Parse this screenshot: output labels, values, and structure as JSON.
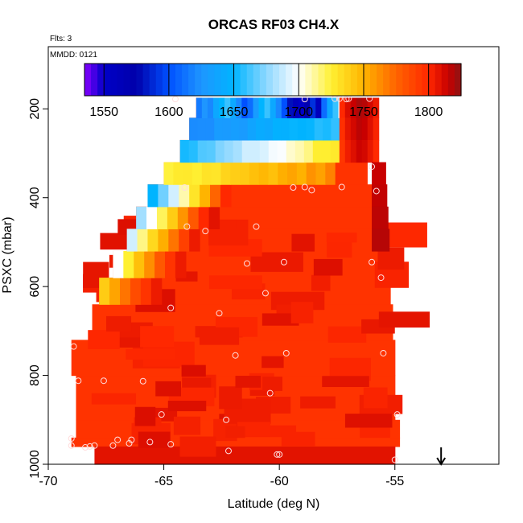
{
  "chart_data": {
    "type": "heatmap",
    "title": "ORCAS RF03 CH4.X",
    "flights_note": "Flts: 3",
    "date_note": "MMDD: 0121",
    "xlabel": "Latitude (deg N)",
    "ylabel": "PSXC (mbar)",
    "xlim": [
      -70,
      -50.5
    ],
    "ylim": [
      1000,
      60
    ],
    "x_ticks": [
      -70,
      -65,
      -60,
      -55
    ],
    "y_ticks": [
      200,
      400,
      600,
      800,
      1000
    ],
    "colorbar": {
      "min": 1535,
      "max": 1825,
      "ticks": [
        1550,
        1600,
        1650,
        1700,
        1750,
        1800
      ]
    },
    "colors": {
      "background_cell": "#ff3300",
      "arrow": "#000000",
      "point_ring": "#ffdddd"
    },
    "lowest_row": {
      "value": 1808,
      "lat_start": -68.0,
      "lat_end": -55.0,
      "p_start": 960,
      "p_end": 1000
    },
    "pressure_rows": [
      {
        "p_start": 940,
        "p_end": 960,
        "lat_start": -69.0,
        "lat_end": -54.8
      },
      {
        "p_start": 900,
        "p_end": 940,
        "lat_start": -68.8,
        "lat_end": -54.8
      },
      {
        "p_start": 800,
        "p_end": 900,
        "lat_start": -68.8,
        "lat_end": -55.0
      },
      {
        "p_start": 720,
        "p_end": 800,
        "lat_start": -69.0,
        "lat_end": -55.0
      },
      {
        "p_start": 640,
        "p_end": 720,
        "lat_start": -68.1,
        "lat_end": -55.1
      },
      {
        "p_start": 580,
        "p_end": 640,
        "lat_start": -67.8,
        "lat_end": -55.2
      },
      {
        "p_start": 520,
        "p_end": 580,
        "lat_start": -67.2,
        "lat_end": -55.3
      },
      {
        "p_start": 470,
        "p_end": 520,
        "lat_start": -66.6,
        "lat_end": -55.3
      },
      {
        "p_start": 420,
        "p_end": 470,
        "lat_start": -66.2,
        "lat_end": -55.4
      },
      {
        "p_start": 370,
        "p_end": 420,
        "lat_start": -65.7,
        "lat_end": -55.5
      },
      {
        "p_start": 320,
        "p_end": 370,
        "lat_start": -65.0,
        "lat_end": -56.2
      },
      {
        "p_start": 270,
        "p_end": 320,
        "lat_start": -64.3,
        "lat_end": -56.2
      },
      {
        "p_start": 220,
        "p_end": 270,
        "lat_start": -63.9,
        "lat_end": -56.4
      },
      {
        "p_start": 175,
        "p_end": 220,
        "lat_start": -63.6,
        "lat_end": -56.8
      }
    ],
    "transition_profiles": [
      {
        "p_start": 580,
        "p_end": 640,
        "lat_start": -67.8,
        "values": [
          1740,
          1755,
          1770,
          1785,
          1795,
          1805
        ]
      },
      {
        "p_start": 520,
        "p_end": 580,
        "lat_start": -67.2,
        "values": [
          1700,
          1725,
          1745,
          1762,
          1780,
          1795,
          1805
        ]
      },
      {
        "p_start": 470,
        "p_end": 520,
        "lat_start": -66.6,
        "values": [
          1690,
          1715,
          1735,
          1752,
          1770,
          1790,
          1805
        ]
      },
      {
        "p_start": 420,
        "p_end": 470,
        "lat_start": -66.2,
        "values": [
          1680,
          1700,
          1720,
          1740,
          1760,
          1780,
          1800,
          1808
        ]
      },
      {
        "p_start": 370,
        "p_end": 420,
        "lat_start": -65.7,
        "values": [
          1650,
          1670,
          1690,
          1710,
          1730,
          1750,
          1775,
          1800
        ]
      }
    ],
    "band_profiles": [
      {
        "p_start": 320,
        "p_end": 370,
        "lat_start": -65.0,
        "lat_end": -57.6,
        "value_from": 1720,
        "value_to": 1760
      },
      {
        "p_start": 270,
        "p_end": 320,
        "lat_start": -64.3,
        "lat_end": -57.4,
        "value_from": 1655,
        "value_to": 1730
      },
      {
        "p_start": 220,
        "p_end": 270,
        "lat_start": -63.9,
        "lat_end": -57.4,
        "value_from": 1620,
        "value_to": 1660
      }
    ],
    "top_row_values": [
      1615,
      1625,
      1620,
      1640,
      1650,
      1660,
      1640,
      1620,
      1600,
      1610,
      1630,
      1650,
      1660,
      1640,
      1620,
      1600,
      1580,
      1560,
      1550,
      1570,
      1590,
      1560,
      1610,
      1640,
      1660,
      1700
    ],
    "east_edge_values": [
      1800,
      1810,
      1815,
      1820,
      1818,
      1812,
      1805
    ],
    "sample_points": [
      [
        -64.5,
        178
      ],
      [
        -58.9,
        178
      ],
      [
        -57.6,
        177
      ],
      [
        -57.4,
        177
      ],
      [
        -57.0,
        177
      ],
      [
        -56.1,
        177
      ],
      [
        -57.1,
        178
      ],
      [
        -64.1,
        377
      ],
      [
        -59.4,
        377
      ],
      [
        -58.9,
        376
      ],
      [
        -58.6,
        383
      ],
      [
        -57.3,
        376
      ],
      [
        -55.8,
        385
      ],
      [
        -56.0,
        330
      ],
      [
        -64.0,
        465
      ],
      [
        -63.2,
        475
      ],
      [
        -61.0,
        465
      ],
      [
        -61.4,
        548
      ],
      [
        -59.8,
        545
      ],
      [
        -56.0,
        545
      ],
      [
        -55.6,
        580
      ],
      [
        -60.6,
        615
      ],
      [
        -64.7,
        648
      ],
      [
        -62.6,
        660
      ],
      [
        -68.9,
        735
      ],
      [
        -61.9,
        755
      ],
      [
        -59.7,
        750
      ],
      [
        -55.5,
        750
      ],
      [
        -68.7,
        812
      ],
      [
        -67.6,
        812
      ],
      [
        -65.9,
        813
      ],
      [
        -60.4,
        840
      ],
      [
        -65.1,
        888
      ],
      [
        -62.3,
        900
      ],
      [
        -54.9,
        888
      ],
      [
        -69.0,
        942
      ],
      [
        -69.0,
        958
      ],
      [
        -67.0,
        945
      ],
      [
        -66.4,
        945
      ],
      [
        -65.6,
        950
      ],
      [
        -64.7,
        955
      ],
      [
        -66.5,
        953
      ],
      [
        -67.2,
        958
      ],
      [
        -68.0,
        958
      ],
      [
        -68.2,
        960
      ],
      [
        -68.4,
        962
      ],
      [
        -62.2,
        970
      ],
      [
        -60.0,
        978
      ],
      [
        -60.1,
        978
      ],
      [
        -55.0,
        990
      ]
    ],
    "annotation": {
      "lat": -53.0,
      "symbol": "down-arrow"
    }
  }
}
